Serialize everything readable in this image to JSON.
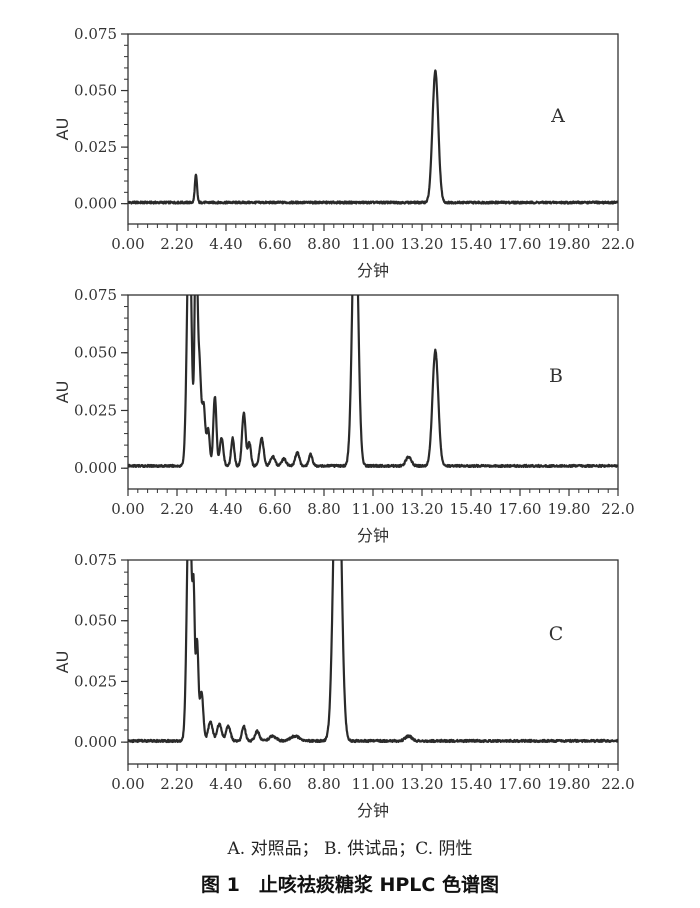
{
  "legend_text": "A. 对照品； B. 供试品；C. 阴性",
  "caption": "图 1　止咳祛痰糖浆 HPLC 色谱图",
  "chart_data": [
    {
      "type": "line",
      "panel_label": "A",
      "xlabel": "分钟",
      "ylabel": "AU",
      "xlim": [
        0,
        22
      ],
      "ylim": [
        -0.009,
        0.075
      ],
      "xticks": [
        "0.00",
        "2.20",
        "4.40",
        "6.60",
        "8.80",
        "11.00",
        "13.20",
        "15.40",
        "17.60",
        "19.80",
        "22.0"
      ],
      "yticks": [
        "0.075",
        "0.050",
        "0.025",
        "0.000"
      ],
      "baseline": 0.0005,
      "peaks": [
        {
          "rt": 3.05,
          "height": 0.012,
          "width": 0.05
        },
        {
          "rt": 13.8,
          "height": 0.058,
          "width": 0.13
        }
      ]
    },
    {
      "type": "line",
      "panel_label": "B",
      "xlabel": "分钟",
      "ylabel": "AU",
      "xlim": [
        0,
        22
      ],
      "ylim": [
        -0.009,
        0.075
      ],
      "xticks": [
        "0.00",
        "2.20",
        "4.40",
        "6.60",
        "8.80",
        "11.00",
        "13.20",
        "15.40",
        "17.60",
        "19.80",
        "22.0"
      ],
      "yticks": [
        "0.075",
        "0.050",
        "0.025",
        "0.000"
      ],
      "baseline": 0.001,
      "peaks": [
        {
          "rt": 2.75,
          "height": 0.11,
          "width": 0.1
        },
        {
          "rt": 3.05,
          "height": 0.1,
          "width": 0.06
        },
        {
          "rt": 3.2,
          "height": 0.045,
          "width": 0.08
        },
        {
          "rt": 3.4,
          "height": 0.025,
          "width": 0.07
        },
        {
          "rt": 3.6,
          "height": 0.016,
          "width": 0.07
        },
        {
          "rt": 3.9,
          "height": 0.03,
          "width": 0.07
        },
        {
          "rt": 4.2,
          "height": 0.012,
          "width": 0.08
        },
        {
          "rt": 4.7,
          "height": 0.012,
          "width": 0.07
        },
        {
          "rt": 5.2,
          "height": 0.023,
          "width": 0.08
        },
        {
          "rt": 5.45,
          "height": 0.01,
          "width": 0.07
        },
        {
          "rt": 6.0,
          "height": 0.012,
          "width": 0.09
        },
        {
          "rt": 6.5,
          "height": 0.004,
          "width": 0.1
        },
        {
          "rt": 7.0,
          "height": 0.003,
          "width": 0.1
        },
        {
          "rt": 7.6,
          "height": 0.006,
          "width": 0.09
        },
        {
          "rt": 8.2,
          "height": 0.005,
          "width": 0.08
        },
        {
          "rt": 10.2,
          "height": 0.12,
          "width": 0.13
        },
        {
          "rt": 12.6,
          "height": 0.004,
          "width": 0.12
        },
        {
          "rt": 13.8,
          "height": 0.05,
          "width": 0.13
        }
      ]
    },
    {
      "type": "line",
      "panel_label": "C",
      "xlabel": "分钟",
      "ylabel": "AU",
      "xlim": [
        0,
        22
      ],
      "ylim": [
        -0.009,
        0.075
      ],
      "xticks": [
        "0.00",
        "2.20",
        "4.40",
        "6.60",
        "8.80",
        "11.00",
        "13.20",
        "15.40",
        "17.60",
        "19.80",
        "22.0"
      ],
      "yticks": [
        "0.075",
        "0.050",
        "0.025",
        "0.000"
      ],
      "baseline": 0.0005,
      "peaks": [
        {
          "rt": 2.75,
          "height": 0.11,
          "width": 0.1
        },
        {
          "rt": 2.95,
          "height": 0.05,
          "width": 0.05
        },
        {
          "rt": 3.1,
          "height": 0.04,
          "width": 0.06
        },
        {
          "rt": 3.3,
          "height": 0.02,
          "width": 0.08
        },
        {
          "rt": 3.7,
          "height": 0.008,
          "width": 0.1
        },
        {
          "rt": 4.1,
          "height": 0.007,
          "width": 0.1
        },
        {
          "rt": 4.5,
          "height": 0.006,
          "width": 0.1
        },
        {
          "rt": 5.2,
          "height": 0.006,
          "width": 0.08
        },
        {
          "rt": 5.8,
          "height": 0.004,
          "width": 0.1
        },
        {
          "rt": 6.5,
          "height": 0.002,
          "width": 0.15
        },
        {
          "rt": 7.5,
          "height": 0.002,
          "width": 0.2
        },
        {
          "rt": 9.4,
          "height": 0.15,
          "width": 0.16
        },
        {
          "rt": 12.6,
          "height": 0.002,
          "width": 0.15
        }
      ]
    }
  ]
}
